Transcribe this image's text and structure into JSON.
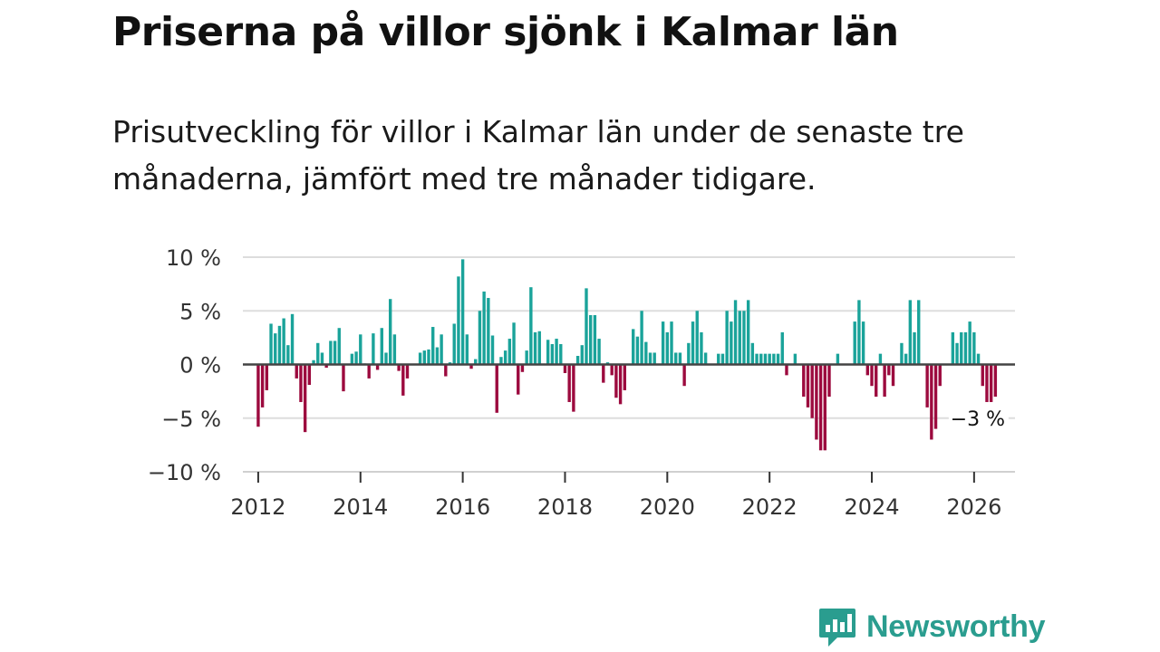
{
  "header": {
    "title": "Priserna på villor sjönk i Kalmar län",
    "subtitle": "Prisutveckling för villor i Kalmar län under de senaste tre månaderna, jämfört med tre månader tidigare."
  },
  "logo": {
    "text": "Newsworthy",
    "icon": "newsworthy-logo-icon"
  },
  "colors": {
    "positive": "#1aa39a",
    "negative": "#9c0a3e",
    "grid": "#dddddd",
    "zero": "#444444"
  },
  "chart_data": {
    "type": "bar",
    "title": "Priserna på villor sjönk i Kalmar län",
    "xlabel": "",
    "ylabel": "",
    "ylim": [
      -10,
      10
    ],
    "xlim": [
      2011.7,
      2026.8
    ],
    "yticks": [
      10,
      5,
      0,
      -5,
      -10
    ],
    "ytick_labels": [
      "10 %",
      "5 %",
      "0 %",
      "−5 %",
      "−10 %"
    ],
    "xticks": [
      2012,
      2014,
      2016,
      2018,
      2020,
      2022,
      2024,
      2026
    ],
    "xtick_labels": [
      "2012",
      "2014",
      "2016",
      "2018",
      "2020",
      "2022",
      "2024",
      "2026"
    ],
    "start": 2012,
    "step_months": 1,
    "annotation": {
      "text": "−3 %",
      "x": 2026.0,
      "value": -3
    },
    "values": [
      -5.8,
      -4.0,
      -2.4,
      3.8,
      2.9,
      3.6,
      4.3,
      1.8,
      4.7,
      -1.3,
      -3.5,
      -6.3,
      -1.9,
      0.4,
      2.0,
      1.1,
      -0.3,
      2.2,
      2.2,
      3.4,
      -2.5,
      0,
      1.0,
      1.2,
      2.8,
      0.1,
      -1.3,
      2.9,
      -0.5,
      3.4,
      1.1,
      6.1,
      2.8,
      -0.6,
      -2.9,
      -1.3,
      0,
      0,
      1.1,
      1.3,
      1.4,
      3.5,
      1.6,
      2.8,
      -1.1,
      0.2,
      3.8,
      8.2,
      9.8,
      2.8,
      -0.4,
      0.5,
      5.0,
      6.8,
      6.2,
      2.7,
      -4.5,
      0.7,
      1.3,
      2.4,
      3.9,
      -2.8,
      -0.7,
      1.3,
      7.2,
      3.0,
      3.1,
      0,
      2.3,
      1.9,
      2.4,
      1.9,
      -0.8,
      -3.5,
      -4.4,
      0.8,
      1.8,
      7.1,
      4.6,
      4.6,
      2.4,
      -1.7,
      0.2,
      -1.0,
      -3.1,
      -3.7,
      -2.4,
      0,
      3.3,
      2.6,
      5.0,
      2.1,
      1.1,
      1.1,
      0,
      4.0,
      3.0,
      4.0,
      1.1,
      1.1,
      -2.0,
      2.0,
      4.0,
      5.0,
      3.0,
      1.1,
      0,
      0,
      1.0,
      1.0,
      5.0,
      4.0,
      6.0,
      5.0,
      5.0,
      6.0,
      2.0,
      1.0,
      1.0,
      1.0,
      1.0,
      1.0,
      1.0,
      3.0,
      -1.0,
      0,
      1.0,
      0,
      -3.0,
      -4.0,
      -5.0,
      -7.0,
      -8.0,
      -8.0,
      -3.0,
      0,
      1.0,
      0,
      0,
      0,
      4.0,
      6.0,
      4.0,
      -1.0,
      -2.0,
      -3.0,
      1.0,
      -3.0,
      -1.0,
      -2.0,
      0,
      2.0,
      1.0,
      6.0,
      3.0,
      6.0,
      0,
      -4.0,
      -7.0,
      -6.0,
      -2.0,
      0,
      0,
      3.0,
      2.0,
      3.0,
      3.0,
      4.0,
      3.0,
      1.0,
      -2.0,
      -3.5,
      -3.5,
      -3.0
    ]
  }
}
